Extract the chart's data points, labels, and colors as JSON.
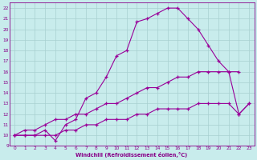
{
  "xlabel": "Windchill (Refroidissement éolien,°C)",
  "line1_x": [
    0,
    1,
    2,
    3,
    4,
    5,
    6,
    7,
    8,
    9,
    10,
    11,
    12,
    13,
    14,
    15,
    16,
    17,
    18,
    19,
    20,
    21,
    22
  ],
  "line1_y": [
    10,
    10,
    10,
    10.5,
    9.5,
    11,
    11.5,
    13.5,
    14,
    15.5,
    17.5,
    18,
    20.7,
    21,
    21.5,
    22,
    22,
    21,
    20,
    18.5,
    17,
    16,
    16
  ],
  "line2_x": [
    0,
    1,
    2,
    3,
    4,
    5,
    6,
    7,
    8,
    9,
    10,
    11,
    12,
    13,
    14,
    15,
    16,
    17,
    18,
    19,
    20,
    21,
    22,
    23
  ],
  "line2_y": [
    10,
    10.5,
    10.5,
    11,
    11.5,
    11.5,
    12,
    12,
    12.5,
    13,
    13,
    13.5,
    14,
    14.5,
    14.5,
    15,
    15.5,
    15.5,
    16,
    16,
    16,
    16,
    12,
    13
  ],
  "line3_x": [
    0,
    1,
    2,
    3,
    4,
    5,
    6,
    7,
    8,
    9,
    10,
    11,
    12,
    13,
    14,
    15,
    16,
    17,
    18,
    19,
    20,
    21,
    22,
    23
  ],
  "line3_y": [
    10,
    10,
    10,
    10,
    10,
    10.5,
    10.5,
    11,
    11,
    11.5,
    11.5,
    11.5,
    12,
    12,
    12.5,
    12.5,
    12.5,
    12.5,
    13,
    13,
    13,
    13,
    12,
    13
  ],
  "line_color": "#990099",
  "bg_color": "#c8ecec",
  "grid_color": "#a8d0d0",
  "axis_color": "#880088",
  "xlim": [
    -0.5,
    23.5
  ],
  "ylim": [
    9,
    22.5
  ],
  "xticks": [
    0,
    1,
    2,
    3,
    4,
    5,
    6,
    7,
    8,
    9,
    10,
    11,
    12,
    13,
    14,
    15,
    16,
    17,
    18,
    19,
    20,
    21,
    22,
    23
  ],
  "yticks": [
    9,
    10,
    11,
    12,
    13,
    14,
    15,
    16,
    17,
    18,
    19,
    20,
    21,
    22
  ],
  "marker": "+"
}
